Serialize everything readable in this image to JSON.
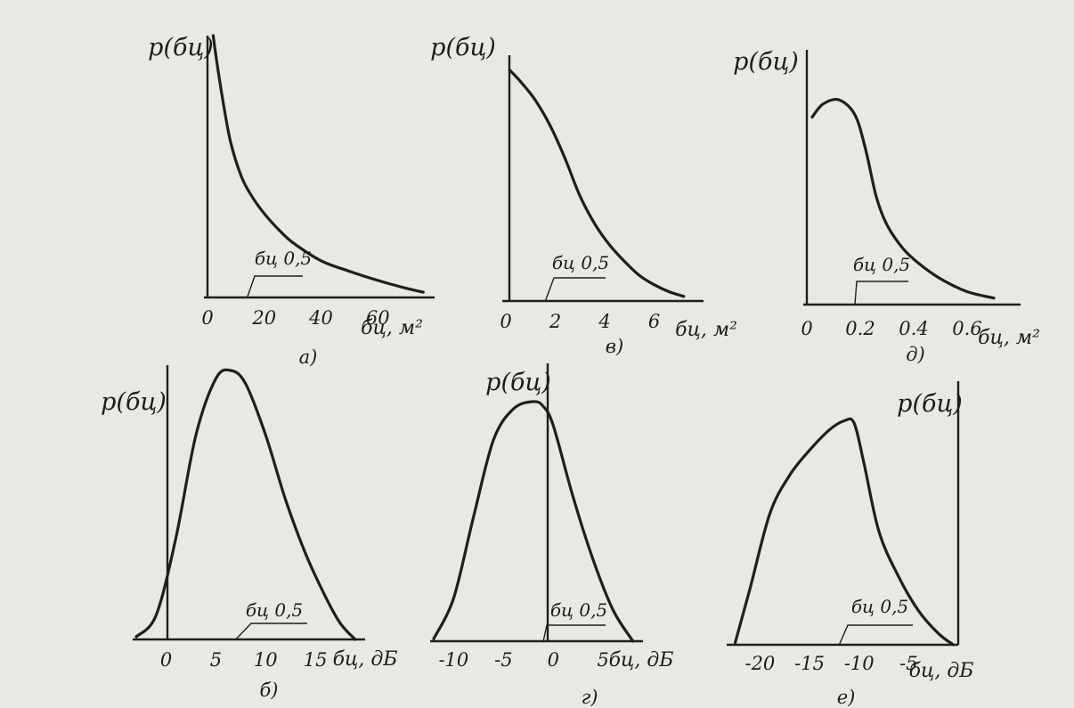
{
  "chart_data": [
    {
      "id": "a",
      "type": "line",
      "subtitle": "а)",
      "ylabel": "p(бц)",
      "xlabel": "бц, м²",
      "median_label": "бц 0,5",
      "xticks": [
        0,
        20,
        40,
        60
      ],
      "xlim": [
        0,
        80
      ],
      "ylim": [
        0,
        1
      ],
      "x": [
        2,
        3,
        5,
        8,
        12,
        16,
        20,
        25,
        30,
        40,
        50,
        60,
        70,
        76
      ],
      "y": [
        1.0,
        0.92,
        0.78,
        0.6,
        0.46,
        0.38,
        0.32,
        0.26,
        0.21,
        0.14,
        0.1,
        0.065,
        0.035,
        0.02
      ],
      "median_x": 14
    },
    {
      "id": "b",
      "type": "line",
      "subtitle": "в)",
      "ylabel": "p(бц)",
      "xlabel": "бц, м²",
      "median_label": "бц 0,5",
      "xticks": [
        0,
        2,
        4,
        6
      ],
      "xlim": [
        0,
        8
      ],
      "ylim": [
        0,
        1
      ],
      "x": [
        0.15,
        0.6,
        1.2,
        1.8,
        2.4,
        3.0,
        3.6,
        4.2,
        4.8,
        5.4,
        6.0,
        6.6,
        7.2
      ],
      "y": [
        0.99,
        0.94,
        0.86,
        0.75,
        0.61,
        0.45,
        0.33,
        0.24,
        0.17,
        0.11,
        0.07,
        0.04,
        0.02
      ],
      "median_x": 1.6
    },
    {
      "id": "d",
      "type": "line",
      "subtitle": "д)",
      "ylabel": "p(бц)",
      "xlabel": "бц, м²",
      "median_label": "бц 0,5",
      "xticks": [
        0,
        0.2,
        0.4,
        0.6
      ],
      "xlim": [
        0,
        0.8
      ],
      "ylim": [
        0,
        1
      ],
      "x": [
        0.02,
        0.06,
        0.12,
        0.18,
        0.22,
        0.26,
        0.3,
        0.36,
        0.42,
        0.5,
        0.6,
        0.7
      ],
      "y": [
        0.87,
        0.93,
        0.95,
        0.88,
        0.72,
        0.5,
        0.37,
        0.26,
        0.19,
        0.12,
        0.06,
        0.03
      ],
      "median_x": 0.18
    },
    {
      "id": "b2",
      "type": "line",
      "subtitle": "б)",
      "ylabel": "p(бц)",
      "xlabel": "бц, дБ",
      "median_label": "бц 0,5",
      "xticks": [
        0,
        5,
        10,
        15
      ],
      "xlim": [
        -3,
        20
      ],
      "ylim": [
        0,
        1
      ],
      "x": [
        -3,
        -1,
        1,
        3,
        5,
        6.5,
        8,
        10,
        12,
        14,
        16,
        17.5,
        19
      ],
      "y": [
        0.01,
        0.09,
        0.38,
        0.76,
        0.97,
        1.0,
        0.95,
        0.76,
        0.52,
        0.32,
        0.16,
        0.06,
        0.0
      ],
      "median_x": 7
    },
    {
      "id": "g",
      "type": "line",
      "subtitle": "г)",
      "ylabel": "p(бц)",
      "xlabel": "бц, дБ",
      "median_label": "бц 0,5",
      "xticks": [
        -10,
        -5,
        0,
        5
      ],
      "xlim": [
        -12,
        9
      ],
      "ylim": [
        0,
        1
      ],
      "x": [
        -12,
        -10,
        -8,
        -6,
        -4,
        -2,
        -1,
        0,
        2,
        4,
        6,
        8
      ],
      "y": [
        0.01,
        0.18,
        0.52,
        0.84,
        0.97,
        1.0,
        0.98,
        0.9,
        0.6,
        0.34,
        0.13,
        0.0
      ],
      "median_x": -1
    },
    {
      "id": "e",
      "type": "line",
      "subtitle": "е)",
      "ylabel": "p(бц)",
      "xlabel": "бц, дБ",
      "median_label": "бц 0,5",
      "xticks": [
        -20,
        -15,
        -10,
        -5
      ],
      "xlim": [
        -23,
        0
      ],
      "ylim": [
        0,
        1
      ],
      "x": [
        -22.5,
        -21,
        -19,
        -17,
        -15,
        -13,
        -11.5,
        -10.5,
        -9.5,
        -8,
        -6,
        -4,
        -2,
        -0.5
      ],
      "y": [
        0.01,
        0.25,
        0.58,
        0.75,
        0.86,
        0.95,
        0.99,
        0.98,
        0.8,
        0.5,
        0.3,
        0.15,
        0.05,
        0.0
      ],
      "median_x": -12
    }
  ]
}
